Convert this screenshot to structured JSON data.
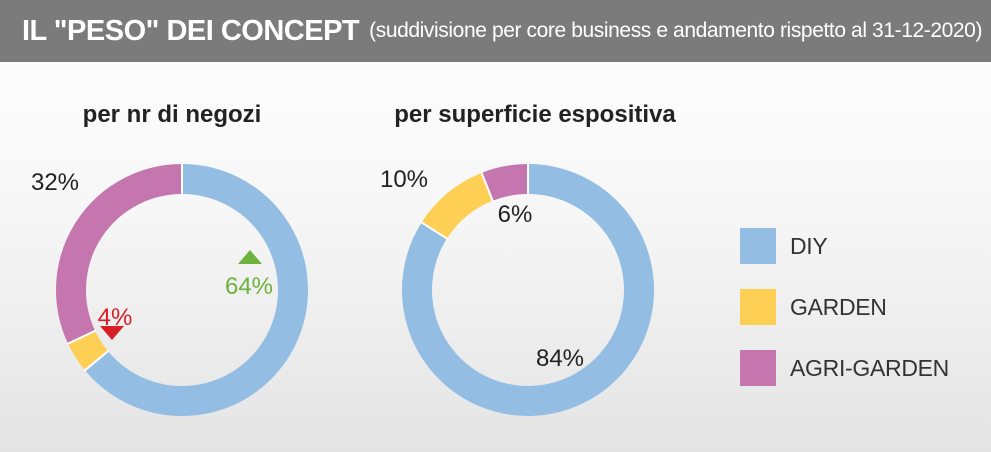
{
  "header": {
    "title": "IL \"PESO\" DEI CONCEPT",
    "subtitle": "(suddivisione per core business e andamento rispetto al 31-12-2020)"
  },
  "colors": {
    "DIY": "#93bde2",
    "GARDEN": "#fdd055",
    "AGRI-GARDEN": "#c576af",
    "up": "#6cb23c",
    "down": "#d91f26"
  },
  "legend": [
    "DIY",
    "GARDEN",
    "AGRI-GARDEN"
  ],
  "chart_data": [
    {
      "type": "pie",
      "title": "per nr di negozi",
      "categories": [
        "DIY",
        "GARDEN",
        "AGRI-GARDEN"
      ],
      "values": [
        64,
        4,
        32
      ],
      "labels": [
        "64%",
        "4%",
        "32%"
      ],
      "trends": [
        "up",
        "down",
        null
      ]
    },
    {
      "type": "pie",
      "title": "per superficie espositiva",
      "categories": [
        "DIY",
        "GARDEN",
        "AGRI-GARDEN"
      ],
      "values": [
        84,
        10,
        6
      ],
      "labels": [
        "84%",
        "10%",
        "6%"
      ],
      "trends": [
        null,
        null,
        null
      ]
    }
  ]
}
